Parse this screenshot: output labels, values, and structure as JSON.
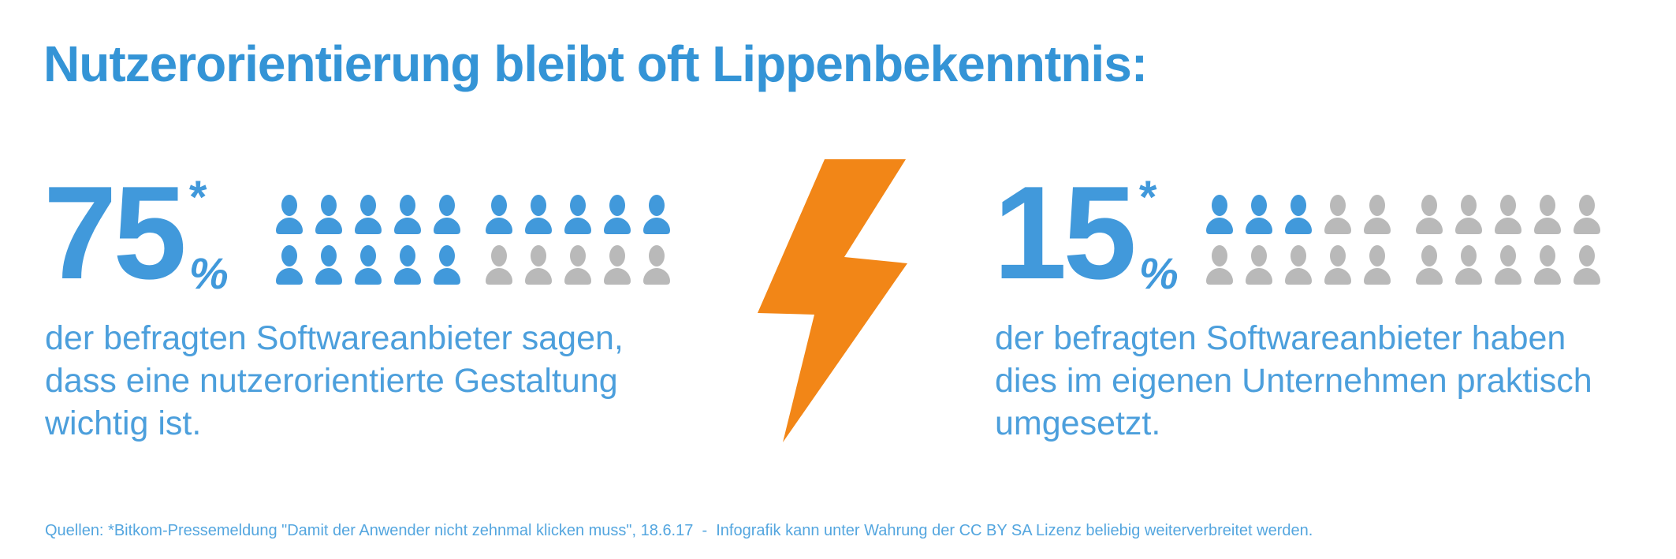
{
  "title": "Nutzerorientierung bleibt oft Lippenbekenntnis:",
  "colors": {
    "title_blue": "#3494D6",
    "accent_blue": "#4199DB",
    "text_blue": "#4C9FDC",
    "footer_blue": "#54A6DF",
    "icon_gray": "#B9B9B9",
    "bolt_orange": "#F28617"
  },
  "left_stat": {
    "value": "75",
    "footnote_marker": "*",
    "percent_sign": "%",
    "description_lines": [
      "der befragten Softwareanbieter sagen,",
      "dass eine nutzerorientierte Gestaltung",
      "wichtig ist."
    ],
    "icon_rows": [
      "bbbbb|bbbbb",
      "bbbbb|ggggg"
    ]
  },
  "right_stat": {
    "value": "15",
    "footnote_marker": "*",
    "percent_sign": "%",
    "description_lines": [
      "der befragten Softwareanbieter haben",
      "dies im eigenen Unternehmen praktisch",
      "umgesetzt."
    ],
    "icon_rows": [
      "bbbgg|ggggg",
      "ggggg|ggggg"
    ]
  },
  "divider_icon": "lightning-bolt",
  "footer": {
    "text": "Quellen: *Bitkom-Pressemeldung \"Damit der Anwender nicht zehnmal klicken muss\", 18.6.17  -  Infografik kann unter Wahrung der CC BY SA Lizenz beliebig weiterverbreitet werden."
  },
  "chart_data": {
    "type": "bar",
    "style": "pictogram unit chart: per stat 2 rows of 10 person icons, each icon = 5%",
    "title": "Nutzerorientierung bleibt oft Lippenbekenntnis:",
    "categories": [
      "der befragten Softwareanbieter sagen, dass eine nutzerorientierte Gestaltung wichtig ist.",
      "der befragten Softwareanbieter haben dies im eigenen Unternehmen praktisch umgesetzt."
    ],
    "values": [
      75,
      15
    ],
    "value_suffix": "%",
    "unit_icons_total_per_stat": 20,
    "unit_icons_filled": [
      15,
      3
    ],
    "footnote_marker": "*",
    "source": "Bitkom-Pressemeldung \"Damit der Anwender nicht zehnmal klicken muss\", 18.6.17",
    "license_note": "Infografik kann unter Wahrung der CC BY SA Lizenz beliebig weiterverbreitet werden."
  }
}
